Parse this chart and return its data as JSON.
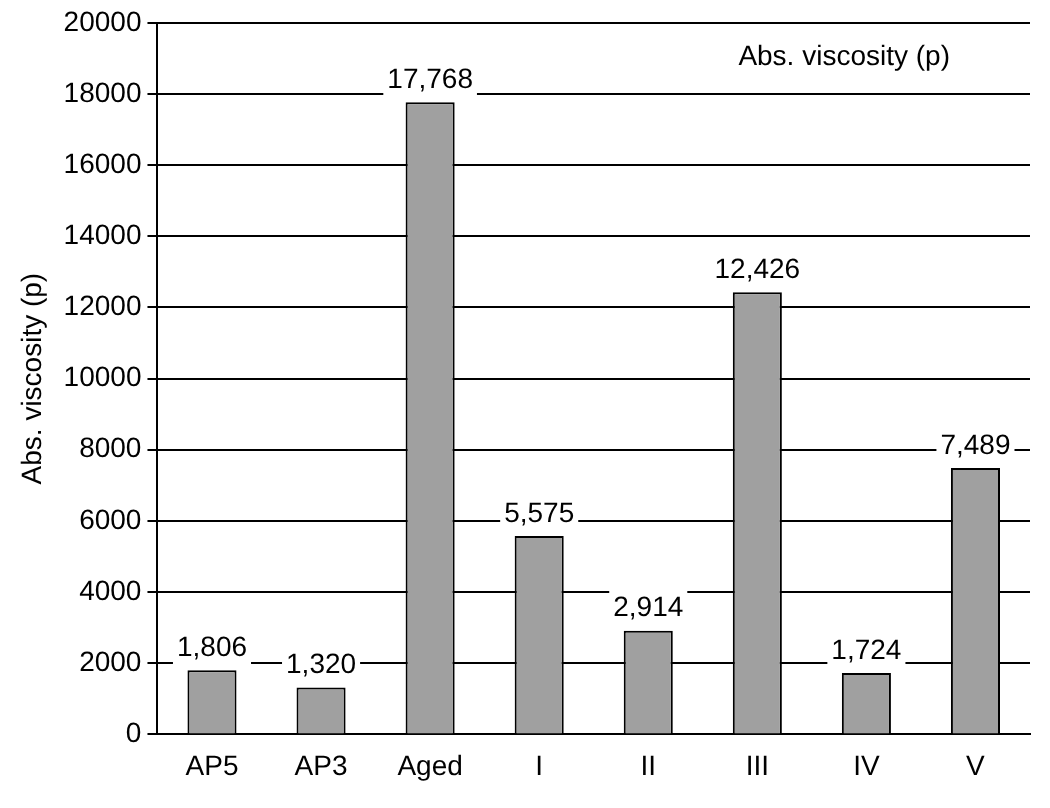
{
  "chart_data": {
    "type": "bar",
    "title": "Abs. viscosity (p)",
    "ylabel": "Abs. viscosity (p)",
    "categories": [
      "AP5",
      "AP3",
      "Aged",
      "I",
      "II",
      "III",
      "IV",
      "V"
    ],
    "values": [
      1806,
      1320,
      17768,
      5575,
      2914,
      12426,
      1724,
      7489
    ],
    "value_labels": [
      "1,806",
      "1,320",
      "17,768",
      "5,575",
      "2,914",
      "12,426",
      "1,724",
      "7,489"
    ],
    "color": "#a0a0a0",
    "ylim": [
      0,
      20000
    ],
    "yticks": [
      0,
      2000,
      4000,
      6000,
      8000,
      10000,
      12000,
      14000,
      16000,
      18000,
      20000
    ],
    "grid": "y",
    "legend": false
  }
}
